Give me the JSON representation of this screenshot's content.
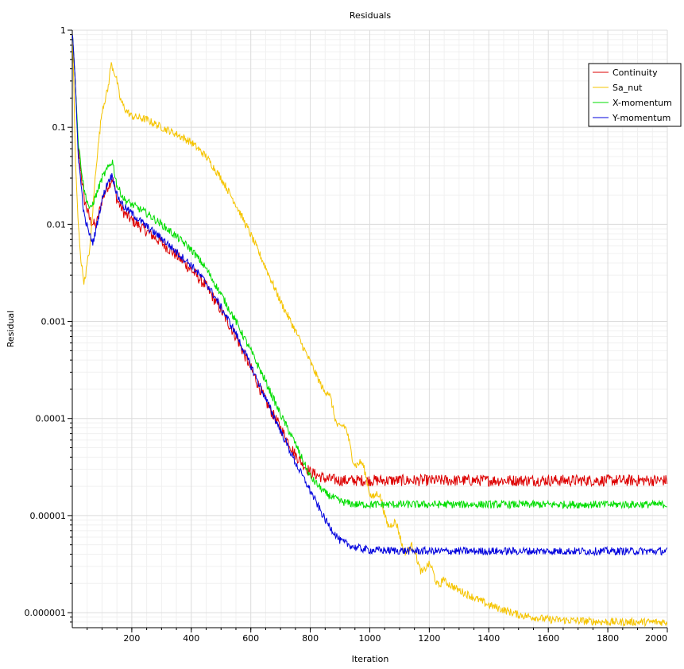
{
  "chart_data": {
    "type": "line",
    "title": "Residuals",
    "xlabel": "Iteration",
    "ylabel": "Residual",
    "xlim": [
      0,
      2000
    ],
    "ylim": [
      7e-07,
      1
    ],
    "yscale": "log",
    "grid": true,
    "legend_placement": "top-right",
    "x_ticks": [
      {
        "value": 200,
        "label": "200"
      },
      {
        "value": 400,
        "label": "400"
      },
      {
        "value": 600,
        "label": "600"
      },
      {
        "value": 800,
        "label": "800"
      },
      {
        "value": 1000,
        "label": "1000"
      },
      {
        "value": 1200,
        "label": "1200"
      },
      {
        "value": 1400,
        "label": "1400"
      },
      {
        "value": 1600,
        "label": "1600"
      },
      {
        "value": 1800,
        "label": "1800"
      },
      {
        "value": 2000,
        "label": "2000"
      }
    ],
    "y_ticks": [
      {
        "value": 1,
        "label": "1"
      },
      {
        "value": 0.1,
        "label": "0.1"
      },
      {
        "value": 0.01,
        "label": "0.01"
      },
      {
        "value": 0.001,
        "label": "0.001"
      },
      {
        "value": 0.0001,
        "label": "0.0001"
      },
      {
        "value": 1e-05,
        "label": "0.00001"
      },
      {
        "value": 1e-06,
        "label": "0.000001"
      }
    ],
    "series": [
      {
        "name": "Continuity",
        "color": "#dd0000",
        "noise": 0.06,
        "x": [
          0,
          10,
          20,
          40,
          60,
          80,
          100,
          120,
          135,
          150,
          175,
          200,
          250,
          300,
          350,
          400,
          450,
          500,
          550,
          600,
          650,
          700,
          750,
          800,
          850,
          900,
          1000,
          1200,
          1400,
          1600,
          1800,
          2000
        ],
        "y": [
          1,
          0.3,
          0.06,
          0.018,
          0.011,
          0.0095,
          0.018,
          0.025,
          0.03,
          0.018,
          0.013,
          0.011,
          0.0085,
          0.0065,
          0.0048,
          0.0034,
          0.0023,
          0.0013,
          0.0007,
          0.00033,
          0.00015,
          8e-05,
          4.2e-05,
          2.8e-05,
          2.4e-05,
          2.3e-05,
          2.3e-05,
          2.3e-05,
          2.3e-05,
          2.3e-05,
          2.3e-05,
          2.3e-05
        ]
      },
      {
        "name": "Sa_nut",
        "color": "#f5c400",
        "noise": 0.04,
        "x": [
          0,
          5,
          10,
          20,
          30,
          40,
          60,
          80,
          100,
          120,
          130,
          140,
          150,
          160,
          170,
          180,
          200,
          250,
          300,
          350,
          400,
          450,
          500,
          550,
          600,
          650,
          700,
          750,
          800,
          850,
          900,
          950,
          1000,
          1050,
          1100,
          1150,
          1200,
          1300,
          1400,
          1500,
          1600,
          1800,
          2000
        ],
        "y": [
          1,
          0.3,
          0.05,
          0.01,
          0.004,
          0.0025,
          0.006,
          0.04,
          0.15,
          0.25,
          0.45,
          0.38,
          0.3,
          0.2,
          0.17,
          0.15,
          0.13,
          0.12,
          0.1,
          0.085,
          0.07,
          0.05,
          0.03,
          0.016,
          0.0078,
          0.0036,
          0.0016,
          0.0008,
          0.00038,
          0.00018,
          9e-05,
          4e-05,
          2e-05,
          1.1e-05,
          6e-06,
          3.8e-06,
          2.6e-06,
          1.7e-06,
          1.2e-06,
          9.5e-07,
          8.5e-07,
          8e-07,
          8e-07
        ]
      },
      {
        "name": "X-momentum",
        "color": "#00dd00",
        "noise": 0.04,
        "x": [
          0,
          10,
          20,
          40,
          60,
          80,
          100,
          120,
          135,
          150,
          175,
          200,
          250,
          300,
          350,
          400,
          450,
          500,
          550,
          600,
          650,
          700,
          750,
          800,
          850,
          900,
          950,
          1000,
          1200,
          1400,
          1600,
          1800,
          2000
        ],
        "y": [
          1,
          0.3,
          0.07,
          0.022,
          0.014,
          0.02,
          0.03,
          0.038,
          0.045,
          0.025,
          0.018,
          0.016,
          0.013,
          0.01,
          0.0075,
          0.0055,
          0.0035,
          0.0019,
          0.001,
          0.0005,
          0.00024,
          0.00011,
          5.5e-05,
          2.5e-05,
          1.7e-05,
          1.4e-05,
          1.3e-05,
          1.3e-05,
          1.3e-05,
          1.3e-05,
          1.3e-05,
          1.3e-05,
          1.3e-05
        ]
      },
      {
        "name": "Y-momentum",
        "color": "#0000dd",
        "noise": 0.04,
        "x": [
          0,
          10,
          20,
          40,
          60,
          70,
          80,
          100,
          120,
          135,
          150,
          175,
          200,
          250,
          300,
          350,
          400,
          450,
          500,
          550,
          600,
          650,
          700,
          750,
          800,
          850,
          900,
          950,
          1000,
          1200,
          1400,
          1600,
          1800,
          2000
        ],
        "y": [
          1,
          0.3,
          0.05,
          0.012,
          0.0075,
          0.0065,
          0.009,
          0.018,
          0.028,
          0.032,
          0.02,
          0.015,
          0.013,
          0.0095,
          0.0072,
          0.0052,
          0.0038,
          0.0025,
          0.0014,
          0.00075,
          0.00035,
          0.00016,
          7.5e-05,
          3.5e-05,
          1.8e-05,
          9e-06,
          5.5e-06,
          4.7e-06,
          4.4e-06,
          4.3e-06,
          4.3e-06,
          4.3e-06,
          4.3e-06,
          4.3e-06
        ]
      }
    ]
  }
}
